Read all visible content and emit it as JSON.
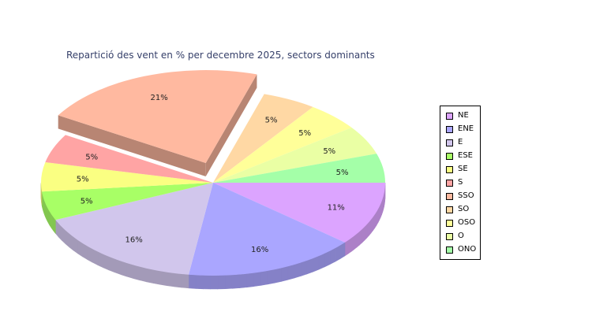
{
  "chart_data": {
    "type": "pie",
    "title": "Repartició des vent en % per decembre 2025, sectors dominants",
    "legend_position": "right",
    "slices": [
      {
        "name": "NE",
        "value": 11,
        "label": "11%",
        "color": "#dca4ff"
      },
      {
        "name": "ENE",
        "value": 16,
        "label": "16%",
        "color": "#aaa6ff"
      },
      {
        "name": "E",
        "value": 16,
        "label": "16%",
        "color": "#d1c6ec"
      },
      {
        "name": "ESE",
        "value": 5,
        "label": "5%",
        "color": "#a8ff66"
      },
      {
        "name": "SE",
        "value": 5,
        "label": "5%",
        "color": "#faff82"
      },
      {
        "name": "S",
        "value": 5,
        "label": "5%",
        "color": "#ffa4a4"
      },
      {
        "name": "SSO",
        "value": 21,
        "label": "21%",
        "color": "#ffb9a0",
        "exploded": true
      },
      {
        "name": "SO",
        "value": 5,
        "label": "5%",
        "color": "#ffd8a4"
      },
      {
        "name": "OSO",
        "value": 5,
        "label": "5%",
        "color": "#ffff99"
      },
      {
        "name": "O",
        "value": 5,
        "label": "5%",
        "color": "#eaffa4"
      },
      {
        "name": "ONO",
        "value": 5,
        "label": "5%",
        "color": "#a4ffa8"
      }
    ]
  }
}
